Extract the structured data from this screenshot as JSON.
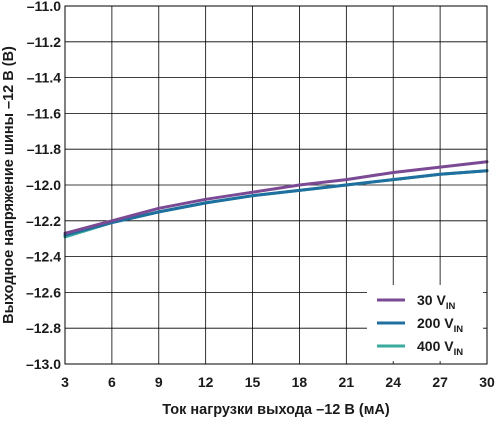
{
  "chart_data": {
    "type": "line",
    "xlabel": "Ток нагрузки выхода –12 В (мА)",
    "ylabel": "Выходное напряжение шины –12 В (В)",
    "xlim": [
      3,
      30
    ],
    "ylim": [
      -13.0,
      -11.0
    ],
    "x_ticks": [
      3,
      6,
      9,
      12,
      15,
      18,
      21,
      24,
      27,
      30
    ],
    "x_tick_labels": [
      "3",
      "6",
      "9",
      "12",
      "15",
      "18",
      "21",
      "24",
      "27",
      "30"
    ],
    "y_ticks": [
      -11.0,
      -11.2,
      -11.4,
      -11.6,
      -11.8,
      -12.0,
      -12.2,
      -12.4,
      -12.6,
      -12.8,
      -13.0
    ],
    "y_tick_labels": [
      "–11.0",
      "–11.2",
      "–11.4",
      "–11.6",
      "–11.8",
      "–12.0",
      "–12.2",
      "–12.4",
      "–12.6",
      "–12.8",
      "–13.0"
    ],
    "grid": true,
    "legend_position": "bottom-right",
    "series": [
      {
        "name": "30 V",
        "name_sub": "IN",
        "color": "#7b4a94",
        "x": [
          3,
          6,
          9,
          12,
          15,
          18,
          21,
          24,
          27,
          30
        ],
        "y": [
          -12.27,
          -12.2,
          -12.13,
          -12.08,
          -12.04,
          -12.0,
          -11.97,
          -11.93,
          -11.9,
          -11.87
        ]
      },
      {
        "name": "200 V",
        "name_sub": "IN",
        "color": "#1f6f9f",
        "x": [
          3,
          6,
          9,
          12,
          15,
          18,
          21,
          24,
          27,
          30
        ],
        "y": [
          -12.28,
          -12.21,
          -12.15,
          -12.1,
          -12.06,
          -12.03,
          -12.0,
          -11.97,
          -11.94,
          -11.92
        ]
      },
      {
        "name": "400 V",
        "name_sub": "IN",
        "color": "#3aaa9e",
        "x": [
          3,
          6,
          9,
          12,
          15,
          18,
          21,
          24,
          27,
          30
        ],
        "y": [
          -12.29,
          -12.21,
          -12.15,
          -12.1,
          -12.06,
          -12.03,
          -12.0,
          -11.97,
          -11.94,
          -11.92
        ]
      }
    ]
  }
}
